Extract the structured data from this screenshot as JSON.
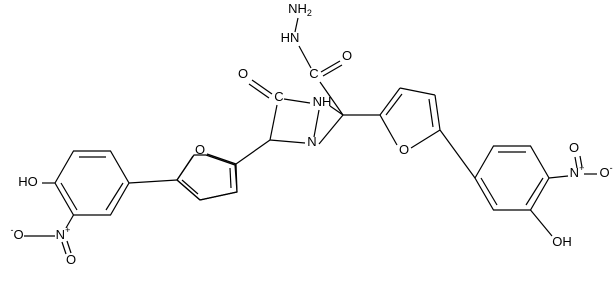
{
  "atoms": [
    {
      "text": "NH",
      "sub": "2"
    },
    {
      "text": "HN"
    },
    {
      "text": "O"
    },
    {
      "text": "C"
    },
    {
      "text": "O"
    },
    {
      "text": "C"
    },
    {
      "text": "NH"
    },
    {
      "text": "N"
    },
    {
      "text": "O"
    },
    {
      "text": "O"
    },
    {
      "text": "HO"
    },
    {
      "text": "N",
      "sup": "+"
    },
    {
      "text": "O",
      "pre": "-"
    },
    {
      "text": "O"
    },
    {
      "text": "N",
      "sup": "+"
    },
    {
      "text": "O",
      "sup": "-"
    },
    {
      "text": "O"
    },
    {
      "text": "OH"
    }
  ]
}
